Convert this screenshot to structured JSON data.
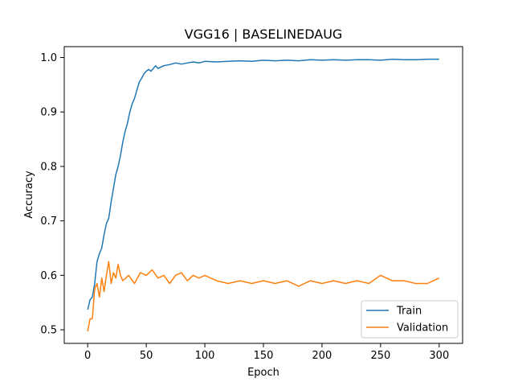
{
  "chart_data": {
    "type": "line",
    "title": "VGG16 | BASELINEDAUG",
    "xlabel": "Epoch",
    "ylabel": "Accuracy",
    "xlim": [
      -20,
      320
    ],
    "ylim": [
      0.475,
      1.02
    ],
    "xticks": [
      0,
      50,
      100,
      150,
      200,
      250,
      300
    ],
    "yticks": [
      0.5,
      0.6,
      0.7,
      0.8,
      0.9,
      1.0
    ],
    "ytick_labels": [
      "0.5",
      "0.6",
      "0.7",
      "0.8",
      "0.9",
      "1.0"
    ],
    "grid": false,
    "legend_position": "lower-right",
    "series": [
      {
        "name": "Train",
        "color": "#1f77b4",
        "x": [
          0,
          2,
          4,
          6,
          8,
          10,
          12,
          14,
          16,
          18,
          20,
          22,
          24,
          26,
          28,
          30,
          32,
          34,
          36,
          38,
          40,
          42,
          44,
          46,
          48,
          50,
          52,
          54,
          56,
          58,
          60,
          65,
          70,
          75,
          80,
          85,
          90,
          95,
          100,
          110,
          120,
          130,
          140,
          150,
          160,
          170,
          180,
          190,
          200,
          210,
          220,
          230,
          240,
          250,
          260,
          270,
          280,
          290,
          300
        ],
        "y": [
          0.537,
          0.555,
          0.56,
          0.585,
          0.625,
          0.64,
          0.65,
          0.675,
          0.695,
          0.705,
          0.735,
          0.76,
          0.785,
          0.8,
          0.82,
          0.845,
          0.865,
          0.88,
          0.9,
          0.915,
          0.925,
          0.94,
          0.955,
          0.962,
          0.97,
          0.975,
          0.978,
          0.975,
          0.98,
          0.985,
          0.98,
          0.985,
          0.987,
          0.99,
          0.988,
          0.99,
          0.992,
          0.99,
          0.993,
          0.992,
          0.993,
          0.994,
          0.993,
          0.995,
          0.994,
          0.995,
          0.994,
          0.996,
          0.995,
          0.996,
          0.995,
          0.996,
          0.996,
          0.995,
          0.997,
          0.996,
          0.996,
          0.997,
          0.997
        ]
      },
      {
        "name": "Validation",
        "color": "#ff7f0e",
        "x": [
          0,
          2,
          4,
          6,
          8,
          10,
          12,
          14,
          16,
          18,
          20,
          22,
          24,
          26,
          28,
          30,
          35,
          40,
          45,
          50,
          55,
          60,
          65,
          70,
          75,
          80,
          85,
          90,
          95,
          100,
          110,
          120,
          130,
          140,
          150,
          160,
          170,
          180,
          190,
          200,
          210,
          220,
          230,
          240,
          250,
          260,
          270,
          280,
          290,
          300
        ],
        "y": [
          0.497,
          0.52,
          0.52,
          0.575,
          0.585,
          0.56,
          0.595,
          0.57,
          0.6,
          0.625,
          0.585,
          0.605,
          0.595,
          0.62,
          0.6,
          0.59,
          0.6,
          0.585,
          0.605,
          0.6,
          0.61,
          0.595,
          0.6,
          0.585,
          0.6,
          0.605,
          0.59,
          0.6,
          0.595,
          0.6,
          0.59,
          0.585,
          0.59,
          0.585,
          0.59,
          0.585,
          0.59,
          0.58,
          0.59,
          0.585,
          0.59,
          0.585,
          0.59,
          0.585,
          0.6,
          0.59,
          0.59,
          0.585,
          0.585,
          0.595
        ]
      }
    ]
  }
}
